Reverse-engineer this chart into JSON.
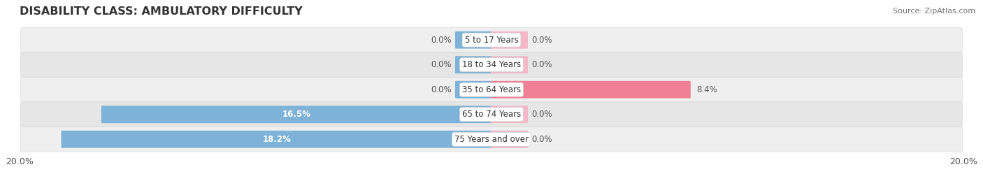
{
  "title": "DISABILITY CLASS: AMBULATORY DIFFICULTY",
  "source": "Source: ZipAtlas.com",
  "categories": [
    "5 to 17 Years",
    "18 to 34 Years",
    "35 to 64 Years",
    "65 to 74 Years",
    "75 Years and over"
  ],
  "male_values": [
    0.0,
    0.0,
    0.0,
    16.5,
    18.2
  ],
  "female_values": [
    0.0,
    0.0,
    8.4,
    0.0,
    0.0
  ],
  "max_val": 20.0,
  "male_color": "#7db3d8",
  "female_color": "#f08096",
  "female_light_color": "#f4b8c8",
  "row_bg_odd": "#efefef",
  "row_bg_even": "#e6e6e6",
  "title_fontsize": 11.5,
  "label_fontsize": 8.5,
  "tick_fontsize": 9,
  "source_fontsize": 8,
  "background_color": "#ffffff",
  "legend_male_color": "#7db3d8",
  "legend_female_color": "#f08096",
  "cat_label_fontsize": 8.5
}
